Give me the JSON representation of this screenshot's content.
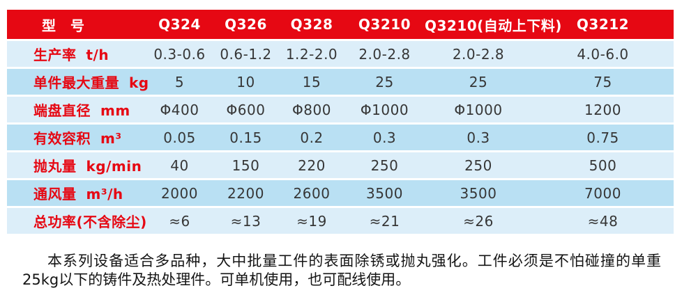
{
  "colors": {
    "header_bg": "#e60813",
    "header_text": "#ffffff",
    "row_light_bg": "#dceef9",
    "row_dark_bg": "#b9e0f3",
    "label_text": "#e60813",
    "value_text": "#363636",
    "paragraph_text": "#141414"
  },
  "table": {
    "header": {
      "label": "型　号",
      "models": [
        "Q324",
        "Q326",
        "Q328",
        "Q3210",
        "Q3210(自动上下料)",
        "Q3212"
      ]
    },
    "rows": [
      {
        "label": "生产率",
        "unit": "t/h",
        "values": [
          "0.3-0.6",
          "0.6-1.2",
          "1.2-2.0",
          "2.0-2.8",
          "2.0-2.8",
          "4.0-6.0"
        ]
      },
      {
        "label": "单件最大重量",
        "unit": "kg",
        "values": [
          "5",
          "10",
          "15",
          "25",
          "25",
          "75"
        ]
      },
      {
        "label": "端盘直径",
        "unit": "mm",
        "values": [
          "Φ400",
          "Φ600",
          "Φ800",
          "Φ1000",
          "Φ1000",
          "1200"
        ]
      },
      {
        "label": "有效容积",
        "unit": "m³",
        "values": [
          "0.05",
          "0.15",
          "0.2",
          "0.3",
          "0.3",
          "0.75"
        ]
      },
      {
        "label": "抛丸量",
        "unit": "kg/min",
        "values": [
          "40",
          "150",
          "220",
          "250",
          "250",
          "500"
        ]
      },
      {
        "label": "通风量",
        "unit": "m³/h",
        "values": [
          "2000",
          "2200",
          "2600",
          "3500",
          "3500",
          "7000"
        ]
      },
      {
        "label": "总功率(不含除尘)",
        "unit": "",
        "values": [
          "≈6",
          "≈13",
          "≈19",
          "≈21",
          "≈26",
          "≈48"
        ]
      }
    ]
  },
  "description": "本系列设备适合多品种，大中批量工件的表面除锈或抛丸强化。工件必须是不怕碰撞的单重25kg以下的铸件及热处理件。可单机使用，也可配线使用。"
}
